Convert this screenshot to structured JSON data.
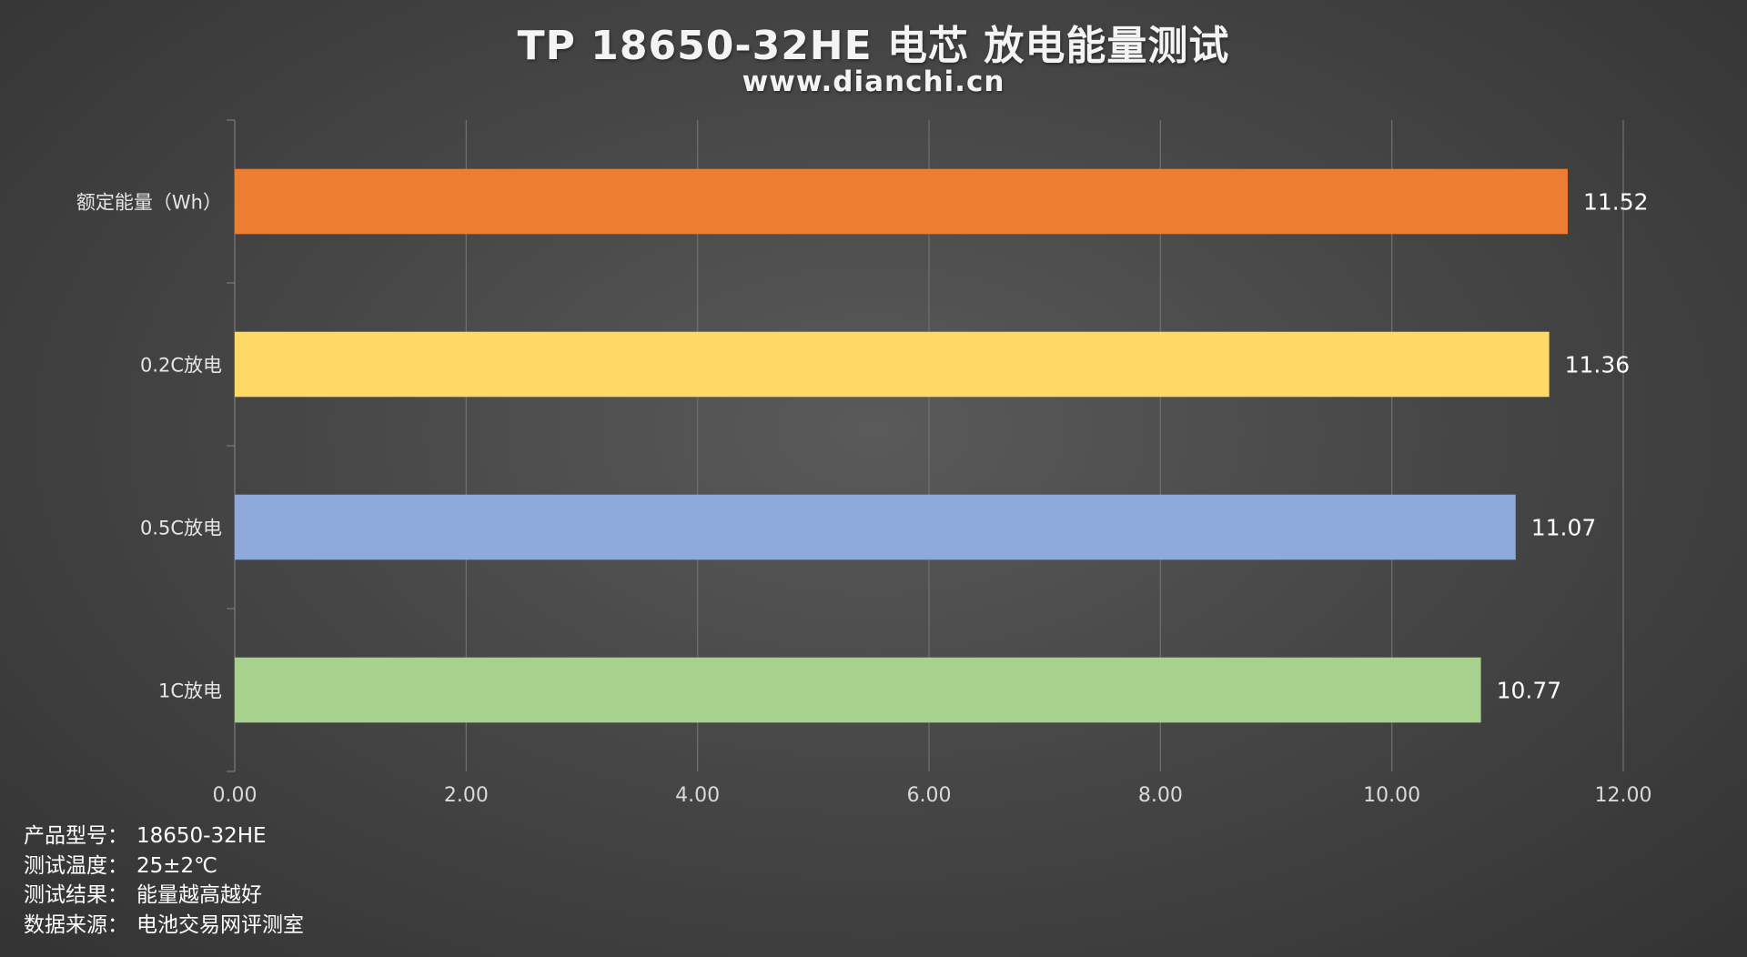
{
  "header": {
    "title": "TP 18650-32HE 电芯 放电能量测试",
    "subtitle": "www.dianchi.cn"
  },
  "chart_data": {
    "type": "bar",
    "orientation": "horizontal",
    "categories": [
      "额定能量（Wh）",
      "0.2C放电",
      "0.5C放电",
      "1C放电"
    ],
    "values": [
      11.52,
      11.36,
      11.07,
      10.77
    ],
    "value_labels": [
      "11.52",
      "11.36",
      "11.07",
      "10.77"
    ],
    "colors": [
      "#ED7D31",
      "#FFD966",
      "#8EA9DB",
      "#A9D18E"
    ],
    "xlim": [
      0,
      12
    ],
    "xticks": [
      0,
      2,
      4,
      6,
      8,
      10,
      12
    ],
    "xtick_labels": [
      "0.00",
      "2.00",
      "4.00",
      "6.00",
      "8.00",
      "10.00",
      "12.00"
    ],
    "grid": true,
    "legend": "none",
    "title": "",
    "xlabel": "",
    "ylabel": ""
  },
  "notes": [
    {
      "label": "产品型号：",
      "value": "18650-32HE"
    },
    {
      "label": "测试温度：",
      "value": "25±2℃"
    },
    {
      "label": "测试结果：",
      "value": "能量越高越好"
    },
    {
      "label": "数据来源：",
      "value": "电池交易网评测室"
    }
  ]
}
